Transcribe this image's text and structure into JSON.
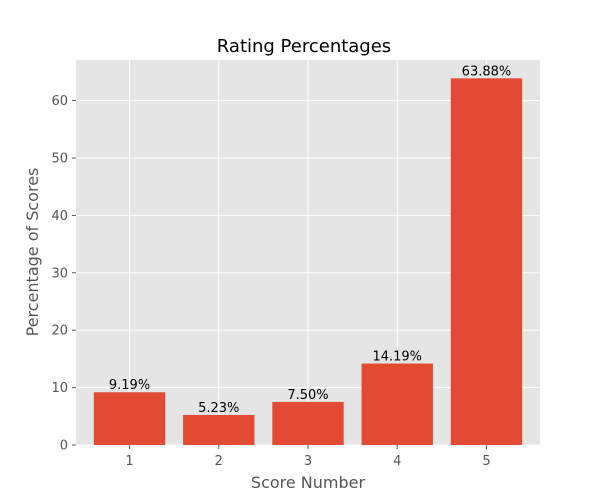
{
  "chart_data": {
    "type": "bar",
    "title": "Rating Percentages",
    "xlabel": "Score Number",
    "ylabel": "Percentage of Scores",
    "categories": [
      "1",
      "2",
      "3",
      "4",
      "5"
    ],
    "values": [
      9.19,
      5.23,
      7.5,
      14.19,
      63.88
    ],
    "data_labels": [
      "9.19%",
      "5.23%",
      "7.50%",
      "14.19%",
      "63.88%"
    ],
    "ylim": [
      0,
      67.07
    ],
    "yticks": [
      0,
      10,
      20,
      30,
      40,
      50,
      60
    ],
    "grid": true,
    "legend": "none",
    "colors": {
      "bar": "#E24A33",
      "plot_background": "#E5E5E5",
      "grid": "#FFFFFF",
      "tick": "#555555",
      "text": "#000000"
    }
  }
}
